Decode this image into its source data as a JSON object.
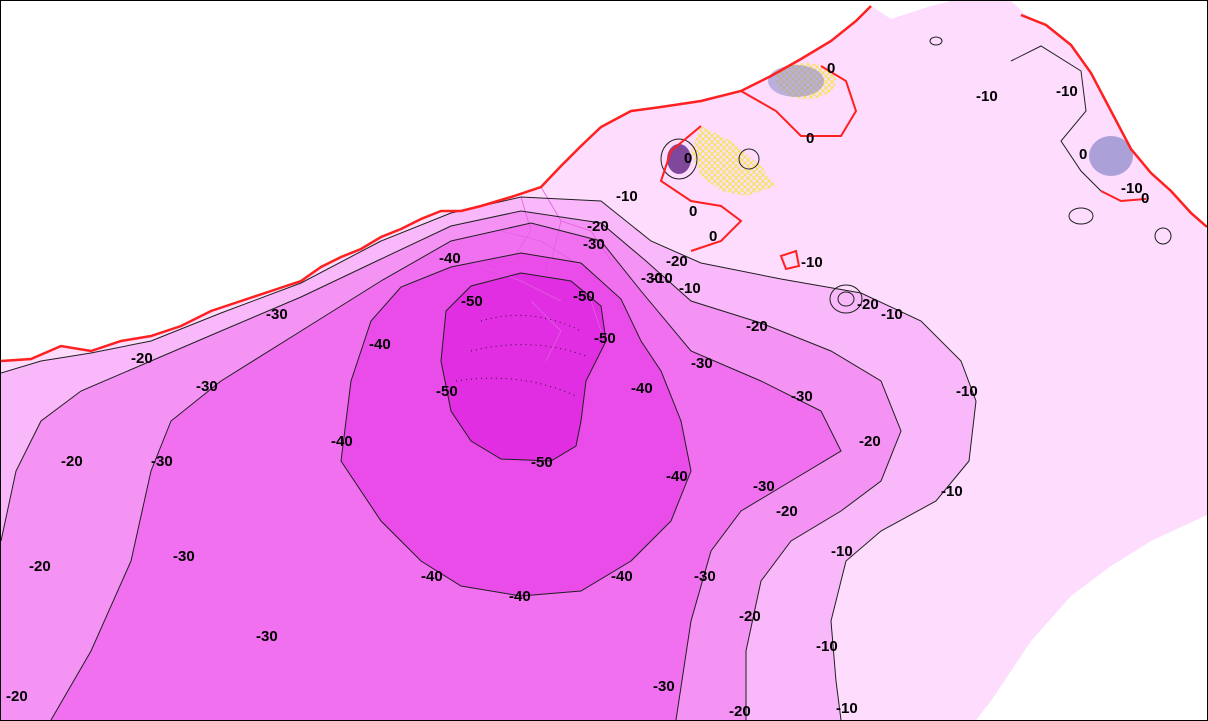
{
  "colors": {
    "background": "#ffffff",
    "frame_border": "#000000",
    "zero_contour": "#ff2020",
    "contour_line": "#202020",
    "positive_hatch": "#f2e64a",
    "negative_anomaly": "#8888c8",
    "band_above_0": "#fff2ff",
    "band_0_to_-10": "#fddcfd",
    "band_-10_to_-20": "#f9b8f9",
    "band_-20_to_-30": "#f593f5",
    "band_-30_to_-40": "#f070f0",
    "band_-40_to_-50": "#ea4cea",
    "band_below_-50": "#e22ee2"
  },
  "contour_levels": [
    0,
    -10,
    -20,
    -30,
    -40,
    -50
  ],
  "contour_labels": [
    {
      "id": "z1",
      "text": "0"
    },
    {
      "id": "z2",
      "text": "0"
    },
    {
      "id": "z3",
      "text": "0"
    },
    {
      "id": "z4",
      "text": "0"
    },
    {
      "id": "z5",
      "text": "0"
    },
    {
      "id": "z6",
      "text": "0"
    },
    {
      "id": "z7",
      "text": "0"
    },
    {
      "id": "t1",
      "text": "-10"
    },
    {
      "id": "t2",
      "text": "-10"
    },
    {
      "id": "t3",
      "text": "-10"
    },
    {
      "id": "t4",
      "text": "-10"
    },
    {
      "id": "t5",
      "text": "-10"
    },
    {
      "id": "t6",
      "text": "-10"
    },
    {
      "id": "t7",
      "text": "-10"
    },
    {
      "id": "t8",
      "text": "-10"
    },
    {
      "id": "t9",
      "text": "-10"
    },
    {
      "id": "t10",
      "text": "-10"
    },
    {
      "id": "t11",
      "text": "-10"
    },
    {
      "id": "t12",
      "text": "-10"
    },
    {
      "id": "t13",
      "text": "-10"
    },
    {
      "id": "w1",
      "text": "-20"
    },
    {
      "id": "w2",
      "text": "-20"
    },
    {
      "id": "w3",
      "text": "-20"
    },
    {
      "id": "w4",
      "text": "-20"
    },
    {
      "id": "w5",
      "text": "-20"
    },
    {
      "id": "w6",
      "text": "-20"
    },
    {
      "id": "w7",
      "text": "-20"
    },
    {
      "id": "w8",
      "text": "-20"
    },
    {
      "id": "w9",
      "text": "-20"
    },
    {
      "id": "w10",
      "text": "-20"
    },
    {
      "id": "w11",
      "text": "-20"
    },
    {
      "id": "w12",
      "text": "-20"
    },
    {
      "id": "h1",
      "text": "-30"
    },
    {
      "id": "h2",
      "text": "-30"
    },
    {
      "id": "h3",
      "text": "-30"
    },
    {
      "id": "h4",
      "text": "-30"
    },
    {
      "id": "h5",
      "text": "-30"
    },
    {
      "id": "h6",
      "text": "-30"
    },
    {
      "id": "h7",
      "text": "-30"
    },
    {
      "id": "h8",
      "text": "-30"
    },
    {
      "id": "h9",
      "text": "-30"
    },
    {
      "id": "h10",
      "text": "-30"
    },
    {
      "id": "h11",
      "text": "-30"
    },
    {
      "id": "h12",
      "text": "-30"
    },
    {
      "id": "f1",
      "text": "-40"
    },
    {
      "id": "f2",
      "text": "-40"
    },
    {
      "id": "f3",
      "text": "-40"
    },
    {
      "id": "f4",
      "text": "-40"
    },
    {
      "id": "f5",
      "text": "-40"
    },
    {
      "id": "f6",
      "text": "-40"
    },
    {
      "id": "f7",
      "text": "-40"
    },
    {
      "id": "f8",
      "text": "-40"
    },
    {
      "id": "v1",
      "text": "-50"
    },
    {
      "id": "v2",
      "text": "-50"
    },
    {
      "id": "v3",
      "text": "-50"
    },
    {
      "id": "v4",
      "text": "-50"
    },
    {
      "id": "v5",
      "text": "-50"
    }
  ]
}
